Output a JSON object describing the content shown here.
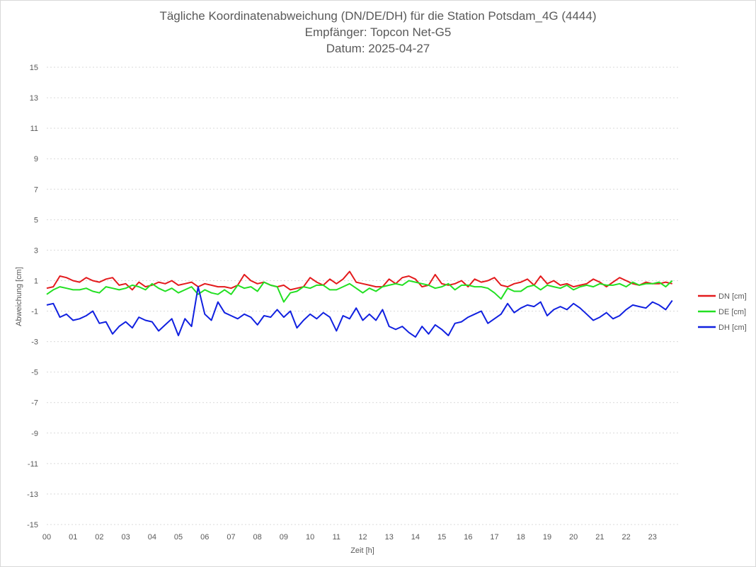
{
  "chart_data": {
    "type": "line",
    "title_lines": [
      "Tägliche Koordinatenabweichung (DN/DE/DH) für die Station Potsdam_4G (4444)",
      "Empfänger: Topcon Net-G5",
      "Datum: 2025-04-27"
    ],
    "xlabel": "Zeit [h]",
    "ylabel": "Abweichung [cm]",
    "xlim": [
      0,
      24
    ],
    "ylim": [
      -15,
      15
    ],
    "x_ticks": [
      "00",
      "01",
      "02",
      "03",
      "04",
      "05",
      "06",
      "07",
      "08",
      "09",
      "10",
      "11",
      "12",
      "13",
      "14",
      "15",
      "16",
      "17",
      "18",
      "19",
      "20",
      "21",
      "22",
      "23"
    ],
    "y_ticks": [
      "15",
      "13",
      "11",
      "9",
      "7",
      "5",
      "3",
      "1",
      "-1",
      "-3",
      "-5",
      "-7",
      "-9",
      "-11",
      "-13",
      "-15"
    ],
    "grid": "horizontal dotted",
    "legend_position": "right",
    "series": [
      {
        "name": "DN [cm]",
        "color": "#e31a1c",
        "sample_interval_h": 0.25,
        "values": [
          0.5,
          0.6,
          1.3,
          1.2,
          1.0,
          0.9,
          1.2,
          1.0,
          0.9,
          1.1,
          1.2,
          0.7,
          0.8,
          0.4,
          0.9,
          0.6,
          0.7,
          0.9,
          0.8,
          1.0,
          0.7,
          0.8,
          0.9,
          0.6,
          0.8,
          0.7,
          0.6,
          0.6,
          0.5,
          0.7,
          1.4,
          1.0,
          0.8,
          0.9,
          0.7,
          0.6,
          0.7,
          0.4,
          0.5,
          0.6,
          1.2,
          0.9,
          0.7,
          1.1,
          0.8,
          1.1,
          1.6,
          0.9,
          0.8,
          0.7,
          0.6,
          0.6,
          1.1,
          0.8,
          1.2,
          1.3,
          1.1,
          0.6,
          0.7,
          1.4,
          0.8,
          0.7,
          0.8,
          1.0,
          0.6,
          1.1,
          0.9,
          1.0,
          1.2,
          0.7,
          0.6,
          0.8,
          0.9,
          1.1,
          0.7,
          1.3,
          0.8,
          1.0,
          0.7,
          0.8,
          0.6,
          0.7,
          0.8,
          1.1,
          0.9,
          0.6,
          0.9,
          1.2,
          1.0,
          0.8,
          0.7,
          0.9,
          0.8,
          0.8,
          0.9,
          0.8
        ]
      },
      {
        "name": "DE [cm]",
        "color": "#22e022",
        "sample_interval_h": 0.25,
        "values": [
          0.1,
          0.4,
          0.6,
          0.5,
          0.4,
          0.4,
          0.5,
          0.3,
          0.2,
          0.6,
          0.5,
          0.4,
          0.5,
          0.7,
          0.6,
          0.4,
          0.8,
          0.5,
          0.3,
          0.5,
          0.2,
          0.4,
          0.6,
          0.1,
          0.4,
          0.2,
          0.1,
          0.4,
          0.1,
          0.7,
          0.5,
          0.6,
          0.3,
          0.9,
          0.7,
          0.6,
          -0.4,
          0.2,
          0.3,
          0.6,
          0.5,
          0.7,
          0.7,
          0.4,
          0.4,
          0.6,
          0.8,
          0.5,
          0.2,
          0.5,
          0.3,
          0.6,
          0.7,
          0.8,
          0.7,
          1.0,
          0.9,
          0.8,
          0.7,
          0.5,
          0.6,
          0.8,
          0.4,
          0.7,
          0.7,
          0.6,
          0.6,
          0.5,
          0.2,
          -0.2,
          0.5,
          0.3,
          0.3,
          0.6,
          0.7,
          0.4,
          0.7,
          0.6,
          0.5,
          0.7,
          0.4,
          0.6,
          0.7,
          0.6,
          0.8,
          0.7,
          0.7,
          0.8,
          0.6,
          0.9,
          0.7,
          0.8,
          0.8,
          0.9,
          0.6,
          1.0
        ]
      },
      {
        "name": "DH [cm]",
        "color": "#1020e0",
        "sample_interval_h": 0.25,
        "values": [
          -0.6,
          -0.5,
          -1.4,
          -1.2,
          -1.6,
          -1.5,
          -1.3,
          -1.0,
          -1.8,
          -1.7,
          -2.5,
          -2.0,
          -1.7,
          -2.1,
          -1.4,
          -1.6,
          -1.7,
          -2.3,
          -1.9,
          -1.5,
          -2.6,
          -1.5,
          -2.0,
          0.6,
          -1.2,
          -1.6,
          -0.4,
          -1.1,
          -1.3,
          -1.5,
          -1.2,
          -1.4,
          -1.9,
          -1.3,
          -1.4,
          -0.9,
          -1.4,
          -1.0,
          -2.1,
          -1.6,
          -1.2,
          -1.5,
          -1.1,
          -1.4,
          -2.3,
          -1.3,
          -1.5,
          -0.8,
          -1.6,
          -1.2,
          -1.6,
          -0.9,
          -2.0,
          -2.2,
          -2.0,
          -2.4,
          -2.7,
          -2.0,
          -2.5,
          -1.9,
          -2.2,
          -2.6,
          -1.8,
          -1.7,
          -1.4,
          -1.2,
          -1.0,
          -1.8,
          -1.5,
          -1.2,
          -0.5,
          -1.1,
          -0.8,
          -0.6,
          -0.7,
          -0.4,
          -1.3,
          -0.9,
          -0.7,
          -0.9,
          -0.5,
          -0.8,
          -1.2,
          -1.6,
          -1.4,
          -1.1,
          -1.5,
          -1.3,
          -0.9,
          -0.6,
          -0.7,
          -0.8,
          -0.4,
          -0.6,
          -0.9,
          -0.3
        ]
      }
    ]
  }
}
